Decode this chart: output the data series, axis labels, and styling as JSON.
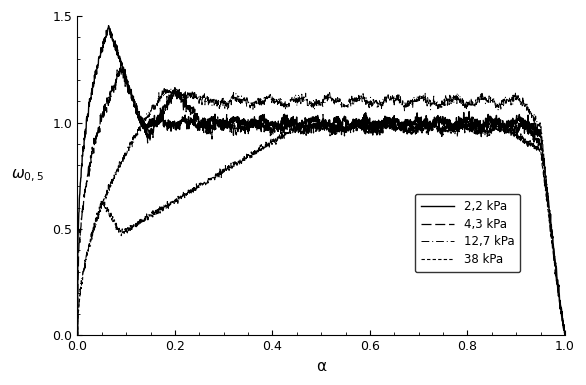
{
  "title": "",
  "xlabel": "α",
  "ylabel": "ω$_{0,5}$",
  "xlim": [
    0,
    1
  ],
  "ylim": [
    0,
    1.5
  ],
  "xticks": [
    0,
    0.2,
    0.4,
    0.6,
    0.8,
    1
  ],
  "yticks": [
    0,
    0.5,
    1,
    1.5
  ],
  "legend_entries": [
    "2,2 kPa",
    "4,3 kPa",
    "12,7 kPa",
    "38 kPa"
  ],
  "background_color": "#ffffff"
}
